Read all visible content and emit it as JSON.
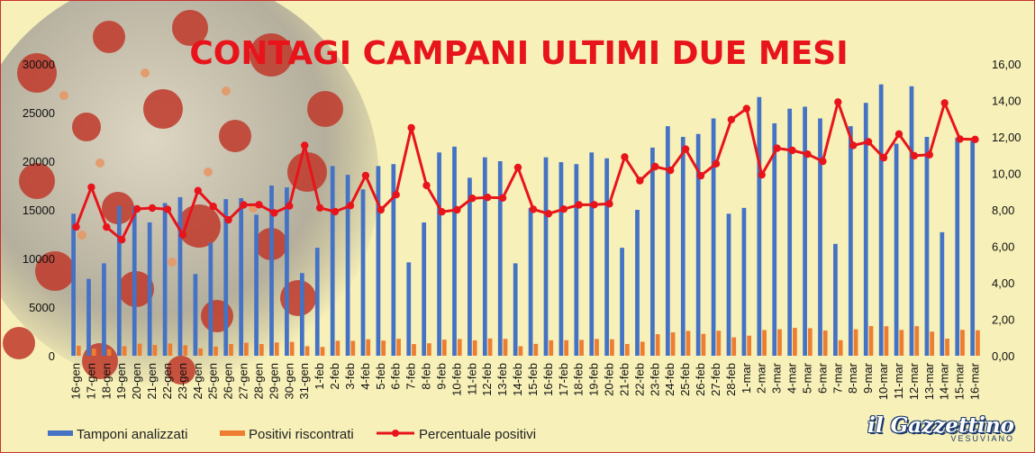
{
  "brand": {
    "name": "il Gazzettino",
    "sub": "VESUVIANO"
  },
  "colors": {
    "tamponi": "#4472c4",
    "positivi": "#ed7d31",
    "percentuale": "#e8141b",
    "title": "#e8141b",
    "background": "#f7f0b8"
  },
  "chart_data": {
    "type": "bar",
    "title": "CONTAGI CAMPANI ULTIMI DUE MESI",
    "categories": [
      "16-gen",
      "17-gen",
      "18-gen",
      "19-gen",
      "20-gen",
      "21-gen",
      "22-gen",
      "23-gen",
      "24-gen",
      "25-gen",
      "26-gen",
      "27-gen",
      "28-gen",
      "29-gen",
      "30-gen",
      "31-gen",
      "1-feb",
      "2-feb",
      "3-feb",
      "4-feb",
      "5-feb",
      "6-feb",
      "7-feb",
      "8-feb",
      "9-feb",
      "10-feb",
      "11-feb",
      "12-feb",
      "13-feb",
      "14-feb",
      "15-feb",
      "16-feb",
      "17-feb",
      "18-feb",
      "19-feb",
      "20-feb",
      "21-feb",
      "22-feb",
      "23-feb",
      "24-feb",
      "25-feb",
      "26-feb",
      "27-feb",
      "28-feb",
      "1-mar",
      "2-mar",
      "3-mar",
      "4-mar",
      "5-mar",
      "6-mar",
      "7-mar",
      "8-mar",
      "9-mar",
      "10-mar",
      "11-mar",
      "12-mar",
      "13-mar",
      "14-mar",
      "15-mar",
      "16-mar"
    ],
    "left_axis": {
      "ticks": [
        "0",
        "5000",
        "10000",
        "15000",
        "20000",
        "25000",
        "30000"
      ],
      "ylim": [
        0,
        30000
      ]
    },
    "right_axis": {
      "ticks": [
        "0,00",
        "2,00",
        "4,00",
        "6,00",
        "8,00",
        "10,00",
        "12,00",
        "14,00",
        "16,00"
      ],
      "ylim": [
        0,
        16
      ]
    },
    "series": [
      {
        "name": "Tamponi analizzati",
        "type": "bar",
        "axis": "left",
        "values": [
          14600,
          7900,
          9500,
          15400,
          15400,
          13700,
          15700,
          16300,
          8400,
          11600,
          16100,
          16200,
          14500,
          17500,
          17300,
          8500,
          11100,
          19500,
          18600,
          17100,
          19500,
          19700,
          9600,
          13700,
          20900,
          21500,
          18300,
          20400,
          20000,
          9500,
          15200,
          20400,
          19900,
          19700,
          20900,
          20300,
          11100,
          15000,
          21400,
          23600,
          22500,
          22800,
          24400,
          14600,
          15200,
          26600,
          23900,
          25400,
          25600,
          24400,
          11500,
          23600,
          26000,
          27900,
          21800,
          27700,
          22500,
          12700,
          22400,
          22100
        ]
      },
      {
        "name": "Positivi riscontrati",
        "type": "bar",
        "axis": "left",
        "values": [
          1030,
          730,
          670,
          980,
          1240,
          1110,
          1260,
          1080,
          760,
          950,
          1200,
          1340,
          1200,
          1370,
          1420,
          980,
          900,
          1540,
          1530,
          1690,
          1560,
          1740,
          1200,
          1280,
          1650,
          1720,
          1580,
          1770,
          1730,
          980,
          1220,
          1590,
          1600,
          1630,
          1730,
          1690,
          1210,
          1440,
          2220,
          2400,
          2550,
          2250,
          2570,
          1890,
          2060,
          2640,
          2720,
          2860,
          2830,
          2600,
          1600,
          2720,
          3050,
          3030,
          2650,
          3040,
          2480,
          1760,
          2660,
          2620
        ]
      },
      {
        "name": "Percentuale positivi",
        "type": "line",
        "axis": "right",
        "values": [
          7.06,
          9.24,
          7.05,
          6.36,
          8.05,
          8.1,
          8.03,
          6.63,
          9.05,
          8.19,
          7.45,
          8.27,
          8.28,
          7.83,
          8.21,
          11.53,
          8.11,
          7.9,
          8.23,
          9.88,
          8.0,
          8.83,
          12.5,
          9.34,
          7.89,
          8.0,
          8.63,
          8.68,
          8.65,
          10.32,
          8.03,
          7.79,
          8.04,
          8.27,
          8.28,
          8.33,
          10.9,
          9.6,
          10.37,
          10.17,
          11.33,
          9.87,
          10.53,
          12.95,
          13.55,
          9.92,
          11.38,
          11.26,
          11.05,
          10.66,
          13.91,
          11.53,
          11.73,
          10.86,
          12.16,
          10.97,
          11.02,
          13.86,
          11.88,
          11.86
        ]
      }
    ],
    "legend": "bottom"
  }
}
